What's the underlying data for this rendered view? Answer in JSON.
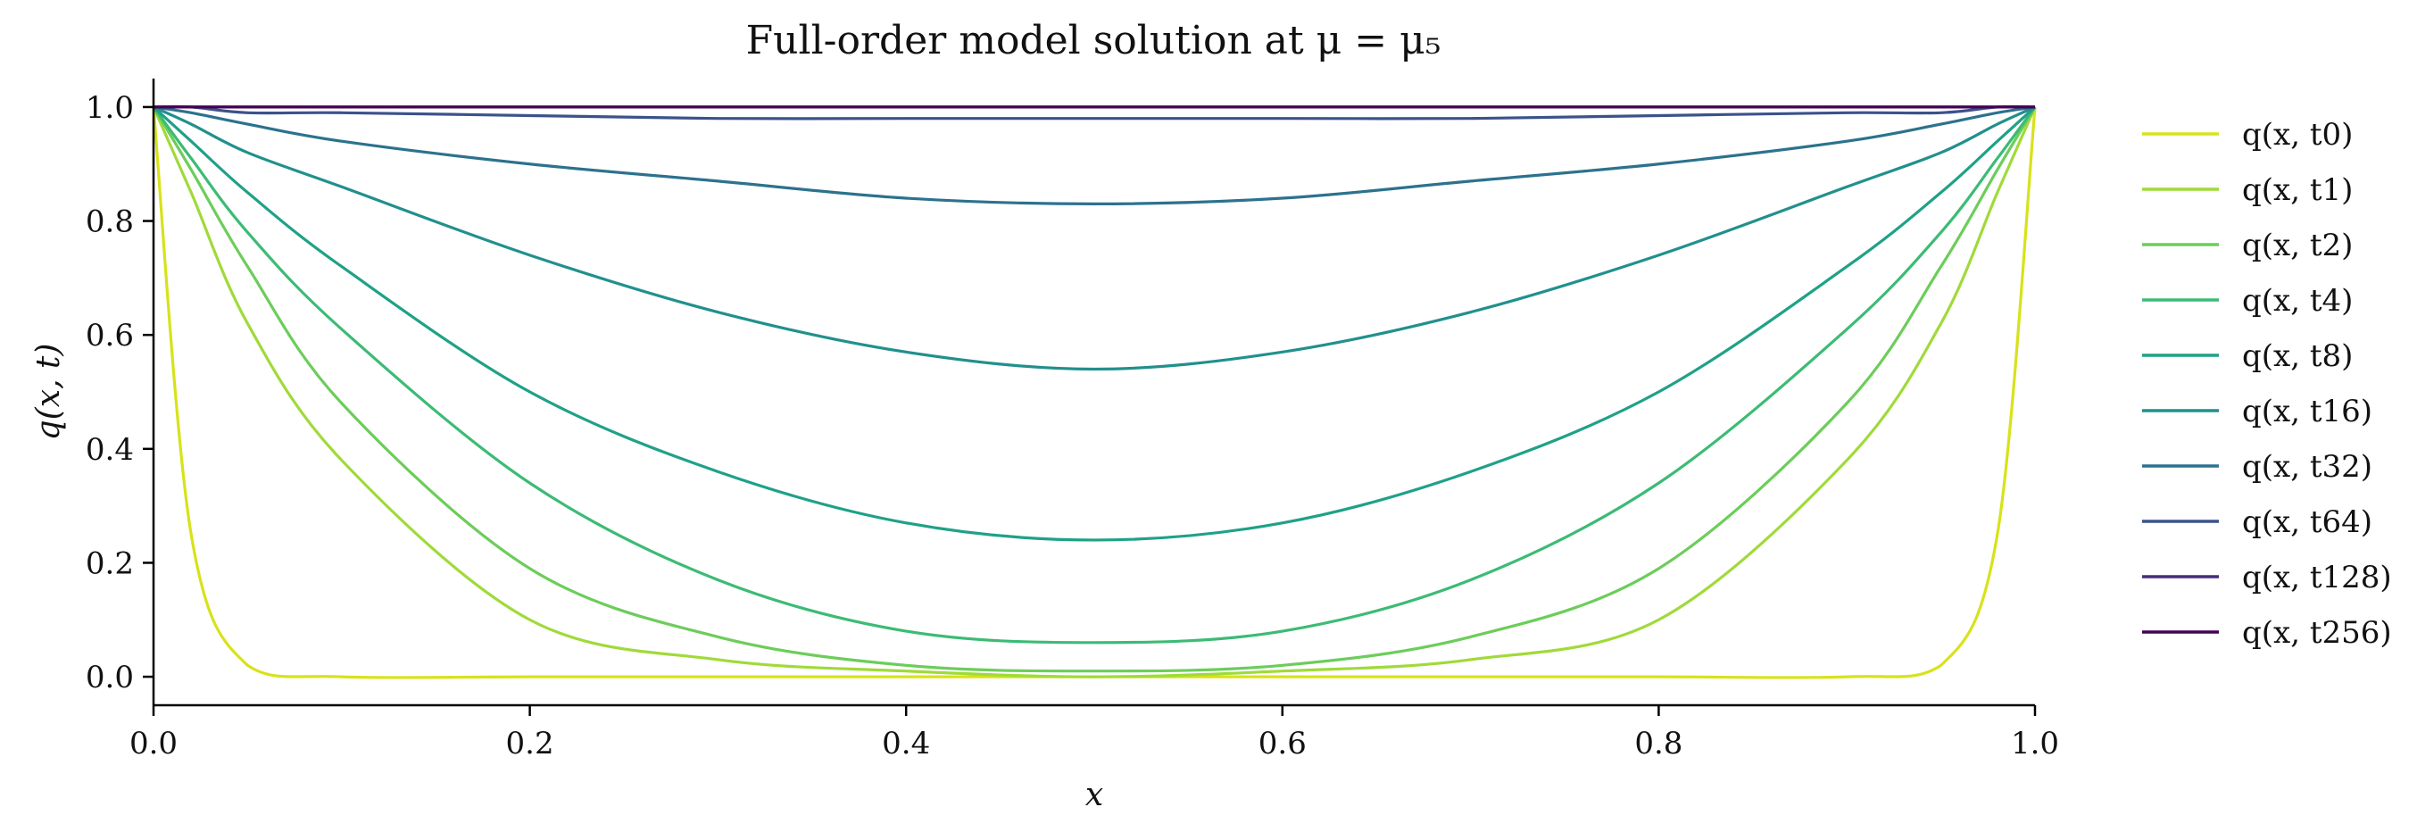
{
  "chart_data": {
    "type": "line",
    "title": "Full-order model solution at μ = μ₅",
    "xlabel": "x",
    "ylabel": "q(x, t)",
    "xlim": [
      0.0,
      1.0
    ],
    "ylim": [
      -0.05,
      1.05
    ],
    "xticks": [
      "0.0",
      "0.2",
      "0.4",
      "0.6",
      "0.8",
      "1.0"
    ],
    "yticks": [
      "0.0",
      "0.2",
      "0.4",
      "0.6",
      "0.8",
      "1.0"
    ],
    "grid": false,
    "legend": "outside-right",
    "x": [
      0.0,
      0.02,
      0.05,
      0.1,
      0.2,
      0.3,
      0.4,
      0.5,
      0.6,
      0.7,
      0.8,
      0.9,
      0.95,
      0.98,
      1.0
    ],
    "series": [
      {
        "name": "q(x, t0)",
        "color": "#d8e219",
        "values": [
          1.0,
          0.25,
          0.02,
          0.0,
          0.0,
          0.0,
          0.0,
          0.0,
          0.0,
          0.0,
          0.0,
          0.0,
          0.02,
          0.25,
          1.0
        ]
      },
      {
        "name": "q(x, t1)",
        "color": "#a0da39",
        "values": [
          1.0,
          0.85,
          0.62,
          0.38,
          0.1,
          0.03,
          0.01,
          0.0,
          0.01,
          0.03,
          0.1,
          0.38,
          0.62,
          0.85,
          1.0
        ]
      },
      {
        "name": "q(x, t2)",
        "color": "#6ccd5a",
        "values": [
          1.0,
          0.89,
          0.72,
          0.48,
          0.19,
          0.07,
          0.02,
          0.01,
          0.02,
          0.07,
          0.19,
          0.48,
          0.72,
          0.89,
          1.0
        ]
      },
      {
        "name": "q(x, t4)",
        "color": "#3cbb75",
        "values": [
          1.0,
          0.91,
          0.78,
          0.61,
          0.34,
          0.17,
          0.08,
          0.06,
          0.08,
          0.17,
          0.34,
          0.61,
          0.78,
          0.91,
          1.0
        ]
      },
      {
        "name": "q(x, t8)",
        "color": "#1fa187",
        "values": [
          1.0,
          0.94,
          0.85,
          0.72,
          0.5,
          0.36,
          0.27,
          0.24,
          0.27,
          0.36,
          0.5,
          0.72,
          0.85,
          0.94,
          1.0
        ]
      },
      {
        "name": "q(x, t16)",
        "color": "#21908d",
        "values": [
          1.0,
          0.97,
          0.92,
          0.86,
          0.74,
          0.64,
          0.57,
          0.54,
          0.57,
          0.64,
          0.74,
          0.86,
          0.92,
          0.97,
          1.0
        ]
      },
      {
        "name": "q(x, t32)",
        "color": "#2c728e",
        "values": [
          1.0,
          0.99,
          0.97,
          0.94,
          0.9,
          0.87,
          0.84,
          0.83,
          0.84,
          0.87,
          0.9,
          0.94,
          0.97,
          0.99,
          1.0
        ]
      },
      {
        "name": "q(x, t64)",
        "color": "#3b528b",
        "values": [
          1.0,
          1.0,
          0.99,
          0.99,
          0.985,
          0.98,
          0.98,
          0.98,
          0.98,
          0.98,
          0.985,
          0.99,
          0.99,
          1.0,
          1.0
        ]
      },
      {
        "name": "q(x, t128)",
        "color": "#472d7b",
        "values": [
          1.0,
          1.0,
          1.0,
          1.0,
          1.0,
          1.0,
          1.0,
          1.0,
          1.0,
          1.0,
          1.0,
          1.0,
          1.0,
          1.0,
          1.0
        ]
      },
      {
        "name": "q(x, t256)",
        "color": "#440154",
        "values": [
          1.0,
          1.0,
          1.0,
          1.0,
          1.0,
          1.0,
          1.0,
          1.0,
          1.0,
          1.0,
          1.0,
          1.0,
          1.0,
          1.0,
          1.0
        ]
      }
    ]
  }
}
